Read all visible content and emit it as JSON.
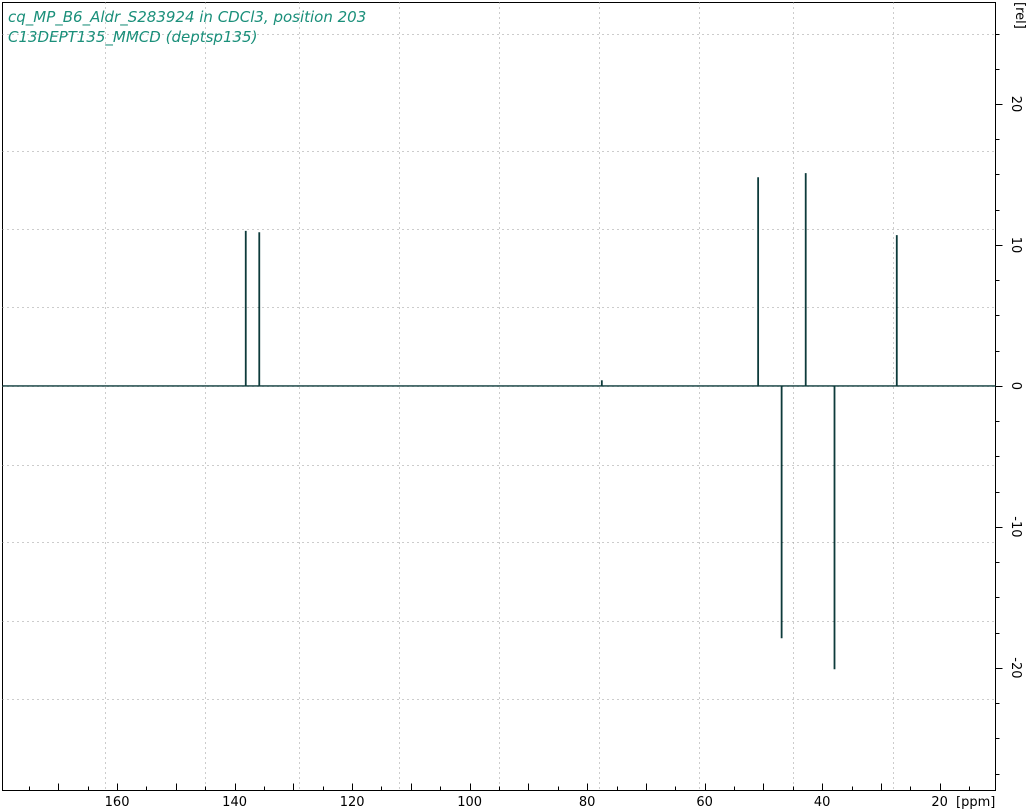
{
  "title_lines": [
    "cq_MP_B6_Aldr_S283924 in CDCl3, position 203",
    "C13DEPT135_MMCD (deptsp135)"
  ],
  "colors": {
    "title": "#1a8f7a",
    "spectrum": "#0d3b3b",
    "grid": "#9a9a9a",
    "frame": "#000000"
  },
  "x_unit": "[ppm]",
  "y_unit": "[rel]",
  "chart_data": {
    "type": "line",
    "title": "",
    "xlabel": "ppm",
    "ylabel": "rel",
    "x_reversed": true,
    "xlim": [
      179.5,
      10.5
    ],
    "ylim": [
      -28.7,
      27.2
    ],
    "x_tick_labels": [
      160,
      140,
      120,
      100,
      80,
      60,
      40,
      20
    ],
    "y_tick_labels": [
      20,
      10,
      0,
      -10,
      -20
    ],
    "grid": true,
    "grid_x_ppm": [
      162,
      145,
      129,
      112,
      95,
      78,
      61,
      45,
      28
    ],
    "grid_y_rel": [
      25,
      16.7,
      11.1,
      5.6,
      0,
      -5.6,
      -11.1,
      -16.7,
      -22.2
    ],
    "series": [
      {
        "peaks": [
          {
            "ppm": 138.1,
            "intensity": 11.0
          },
          {
            "ppm": 135.8,
            "intensity": 10.9
          },
          {
            "ppm": 77.5,
            "intensity": 0.4
          },
          {
            "ppm": 50.9,
            "intensity": 14.8
          },
          {
            "ppm": 46.9,
            "intensity": -17.9
          },
          {
            "ppm": 42.8,
            "intensity": 15.1
          },
          {
            "ppm": 37.9,
            "intensity": -20.1
          },
          {
            "ppm": 27.3,
            "intensity": 10.7
          }
        ]
      }
    ]
  }
}
